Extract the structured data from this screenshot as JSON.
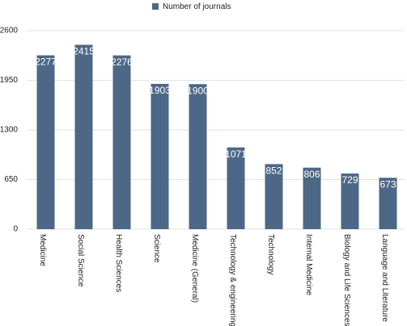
{
  "chart_data": {
    "type": "bar",
    "categories": [
      "Medicine",
      "Social Science",
      "Health Sciences",
      "Science",
      "Medicine (General)",
      "Technology & engineering",
      "Technology",
      "Internal Medicine",
      "Biology and Life Sciences",
      "Language and Literature"
    ],
    "series": [
      {
        "name": "Number of journals",
        "color": "#4d6886",
        "values": [
          2277,
          2415,
          2276,
          1903,
          1900,
          1071,
          852,
          806,
          729,
          673
        ]
      }
    ],
    "ylim": [
      0,
      2600
    ],
    "yticks": [
      0,
      650,
      1300,
      1950,
      2600
    ],
    "grid": true
  }
}
